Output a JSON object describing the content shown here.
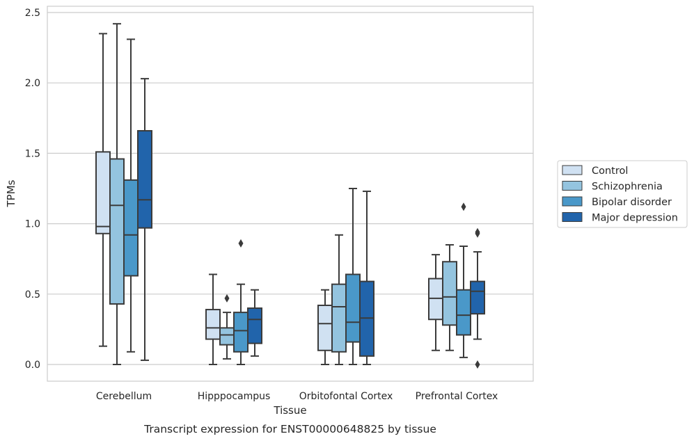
{
  "chart_data": {
    "type": "box",
    "title": "",
    "caption": "Transcript expression for ENST00000648825 by tissue",
    "xlabel": "Tissue",
    "ylabel": "TPMs",
    "ylim": [
      -0.12,
      2.55
    ],
    "yticks": [
      0.0,
      0.5,
      1.0,
      1.5,
      2.0,
      2.5
    ],
    "ytick_labels": [
      "0.0",
      "0.5",
      "1.0",
      "1.5",
      "2.0",
      "2.5"
    ],
    "grid": "horizontal",
    "legend_position": "right",
    "categories": [
      "Cerebellum",
      "Hipppocampus",
      "Orbitofontal Cortex",
      "Prefrontal Cortex"
    ],
    "series": [
      {
        "name": "Control",
        "color": "#d0e1f2",
        "boxes": [
          {
            "min": 0.13,
            "q1": 0.93,
            "median": 0.98,
            "q3": 1.51,
            "max": 2.35,
            "outliers": []
          },
          {
            "min": 0.0,
            "q1": 0.18,
            "median": 0.26,
            "q3": 0.39,
            "max": 0.64,
            "outliers": []
          },
          {
            "min": 0.0,
            "q1": 0.1,
            "median": 0.29,
            "q3": 0.42,
            "max": 0.53,
            "outliers": []
          },
          {
            "min": 0.1,
            "q1": 0.32,
            "median": 0.47,
            "q3": 0.61,
            "max": 0.78,
            "outliers": []
          }
        ]
      },
      {
        "name": "Schizophrenia",
        "color": "#94c4df",
        "boxes": [
          {
            "min": 0.0,
            "q1": 0.43,
            "median": 1.13,
            "q3": 1.46,
            "max": 2.42,
            "outliers": []
          },
          {
            "min": 0.04,
            "q1": 0.14,
            "median": 0.21,
            "q3": 0.26,
            "max": 0.37,
            "outliers": [
              0.47
            ]
          },
          {
            "min": 0.0,
            "q1": 0.09,
            "median": 0.41,
            "q3": 0.57,
            "max": 0.92,
            "outliers": []
          },
          {
            "min": 0.1,
            "q1": 0.28,
            "median": 0.48,
            "q3": 0.73,
            "max": 0.85,
            "outliers": []
          }
        ]
      },
      {
        "name": "Bipolar disorder",
        "color": "#4a98c9",
        "boxes": [
          {
            "min": 0.09,
            "q1": 0.63,
            "median": 0.92,
            "q3": 1.31,
            "max": 2.31,
            "outliers": []
          },
          {
            "min": 0.0,
            "q1": 0.09,
            "median": 0.24,
            "q3": 0.37,
            "max": 0.57,
            "outliers": [
              0.86
            ]
          },
          {
            "min": 0.0,
            "q1": 0.16,
            "median": 0.3,
            "q3": 0.64,
            "max": 1.25,
            "outliers": []
          },
          {
            "min": 0.05,
            "q1": 0.21,
            "median": 0.35,
            "q3": 0.53,
            "max": 0.84,
            "outliers": [
              1.12
            ]
          }
        ]
      },
      {
        "name": "Major depression",
        "color": "#2164ab",
        "boxes": [
          {
            "min": 0.03,
            "q1": 0.97,
            "median": 1.17,
            "q3": 1.66,
            "max": 2.03,
            "outliers": []
          },
          {
            "min": 0.06,
            "q1": 0.15,
            "median": 0.32,
            "q3": 0.4,
            "max": 0.53,
            "outliers": []
          },
          {
            "min": 0.0,
            "q1": 0.06,
            "median": 0.33,
            "q3": 0.59,
            "max": 1.23,
            "outliers": []
          },
          {
            "min": 0.18,
            "q1": 0.36,
            "median": 0.52,
            "q3": 0.59,
            "max": 0.8,
            "outliers": [
              0.0,
              0.93,
              0.94
            ]
          }
        ]
      }
    ]
  }
}
